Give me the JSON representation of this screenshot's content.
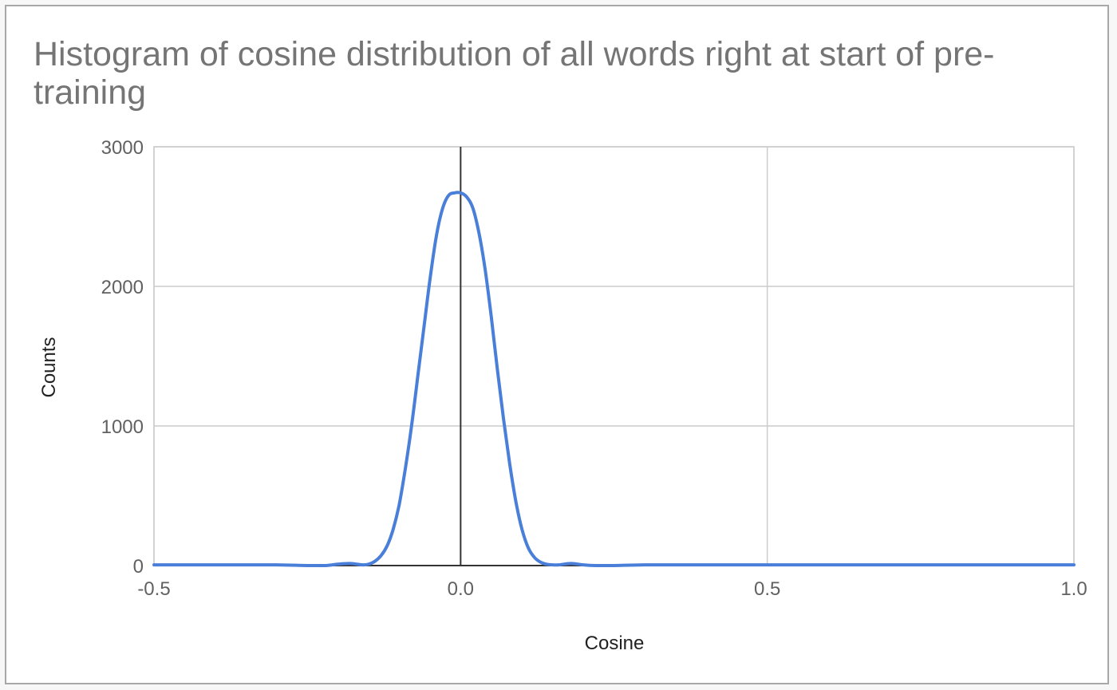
{
  "chart_data": {
    "type": "line",
    "title": "Histogram of cosine distribution of all words right at start of pre-training",
    "xlabel": "Cosine",
    "ylabel": "Counts",
    "xlim": [
      -0.5,
      1.0
    ],
    "ylim": [
      0,
      3000
    ],
    "x_ticks": [
      -0.5,
      0.0,
      0.5,
      1.0
    ],
    "x_tick_labels": [
      "-0.5",
      "0.0",
      "0.5",
      "1.0"
    ],
    "y_ticks": [
      0,
      1000,
      2000,
      3000
    ],
    "y_tick_labels": [
      "0",
      "1000",
      "2000",
      "3000"
    ],
    "grid": true,
    "legend": "none",
    "series": [
      {
        "color": "#4a7fd9",
        "x": [
          -0.5,
          -0.4,
          -0.3,
          -0.25,
          -0.22,
          -0.2,
          -0.18,
          -0.16,
          -0.15,
          -0.14,
          -0.13,
          -0.12,
          -0.11,
          -0.1,
          -0.09,
          -0.08,
          -0.07,
          -0.06,
          -0.05,
          -0.04,
          -0.03,
          -0.02,
          -0.01,
          0.0,
          0.01,
          0.02,
          0.03,
          0.04,
          0.05,
          0.06,
          0.07,
          0.08,
          0.09,
          0.1,
          0.11,
          0.12,
          0.13,
          0.14,
          0.15,
          0.16,
          0.18,
          0.2,
          0.22,
          0.25,
          0.3,
          0.4,
          0.5,
          0.6,
          0.7,
          0.8,
          0.9,
          1.0
        ],
        "y": [
          5,
          5,
          5,
          0,
          0,
          10,
          15,
          5,
          10,
          30,
          70,
          140,
          260,
          440,
          700,
          1000,
          1350,
          1700,
          2050,
          2350,
          2550,
          2650,
          2670,
          2670,
          2640,
          2560,
          2380,
          2120,
          1780,
          1400,
          1050,
          730,
          460,
          260,
          130,
          60,
          25,
          10,
          5,
          5,
          15,
          5,
          0,
          0,
          5,
          5,
          5,
          5,
          5,
          5,
          5,
          5
        ]
      }
    ]
  }
}
